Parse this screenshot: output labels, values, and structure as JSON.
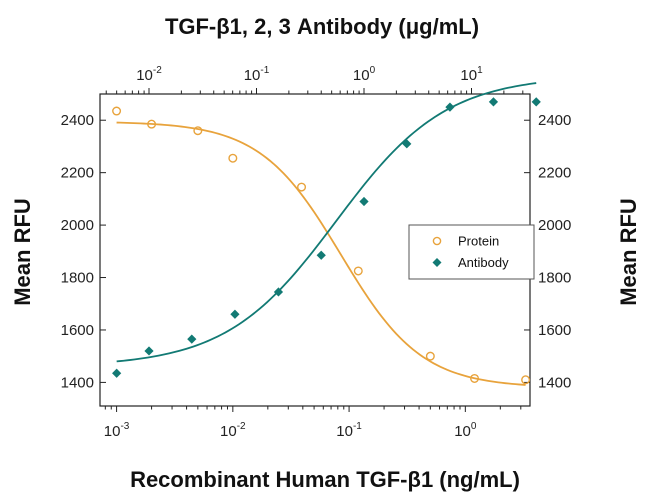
{
  "chart_data": {
    "type": "scatter",
    "title": "",
    "top_axis": {
      "label": "TGF-β1, 2, 3 Antibody (μg/mL)",
      "scale": "log",
      "lim": [
        0.0035,
        35
      ],
      "ticks": [
        {
          "exp": "-2",
          "value": 0.01
        },
        {
          "exp": "-1",
          "value": 0.1
        },
        {
          "exp": "0",
          "value": 1
        },
        {
          "exp": "1",
          "value": 10
        }
      ]
    },
    "bottom_axis": {
      "label": "Recombinant Human TGF-β1 (ng/mL)",
      "scale": "log",
      "lim": [
        0.00072,
        3.6
      ],
      "ticks": [
        {
          "exp": "-3",
          "value": 0.001
        },
        {
          "exp": "-2",
          "value": 0.01
        },
        {
          "exp": "-1",
          "value": 0.1
        },
        {
          "exp": "0",
          "value": 1
        }
      ]
    },
    "left_axis": {
      "label": "Mean RFU",
      "lim": [
        1310,
        2500
      ],
      "ticks": [
        1400,
        1600,
        1800,
        2000,
        2200,
        2400
      ]
    },
    "right_axis": {
      "label": "Mean RFU",
      "lim": [
        1310,
        2500
      ],
      "ticks": [
        1400,
        1600,
        1800,
        2000,
        2200,
        2400
      ]
    },
    "legend": {
      "position": "right-center",
      "entries": [
        "Protein",
        "Antibody"
      ]
    },
    "colors": {
      "protein": "#e8a33c",
      "antibody": "#127a74",
      "axis": "#222222"
    },
    "series": [
      {
        "name": "Protein",
        "axis": "bottom",
        "marker": "open-circle",
        "x": [
          0.001,
          0.002,
          0.005,
          0.01,
          0.039,
          0.12,
          0.5,
          1.2,
          3.3
        ],
        "y": [
          2435,
          2385,
          2360,
          2255,
          2145,
          1825,
          1500,
          1415,
          1410
        ]
      },
      {
        "name": "Antibody",
        "axis": "top",
        "marker": "filled-diamond",
        "x": [
          0.005,
          0.01,
          0.025,
          0.063,
          0.16,
          0.4,
          1.0,
          2.5,
          6.3,
          16,
          40
        ],
        "y": [
          1435,
          1520,
          1565,
          1660,
          1745,
          1885,
          2090,
          2310,
          2450,
          2470,
          2470
        ]
      }
    ],
    "fits": [
      {
        "name": "Protein",
        "axis": "bottom",
        "bottom": 1380,
        "top": 2395,
        "ec50": 0.085,
        "hill": 1.25,
        "range": [
          0.001,
          3.3
        ]
      },
      {
        "name": "Antibody",
        "axis": "top",
        "bottom": 1460,
        "top": 2570,
        "ec50": 0.55,
        "hill": 0.85,
        "range": [
          0.005,
          40
        ]
      }
    ]
  }
}
